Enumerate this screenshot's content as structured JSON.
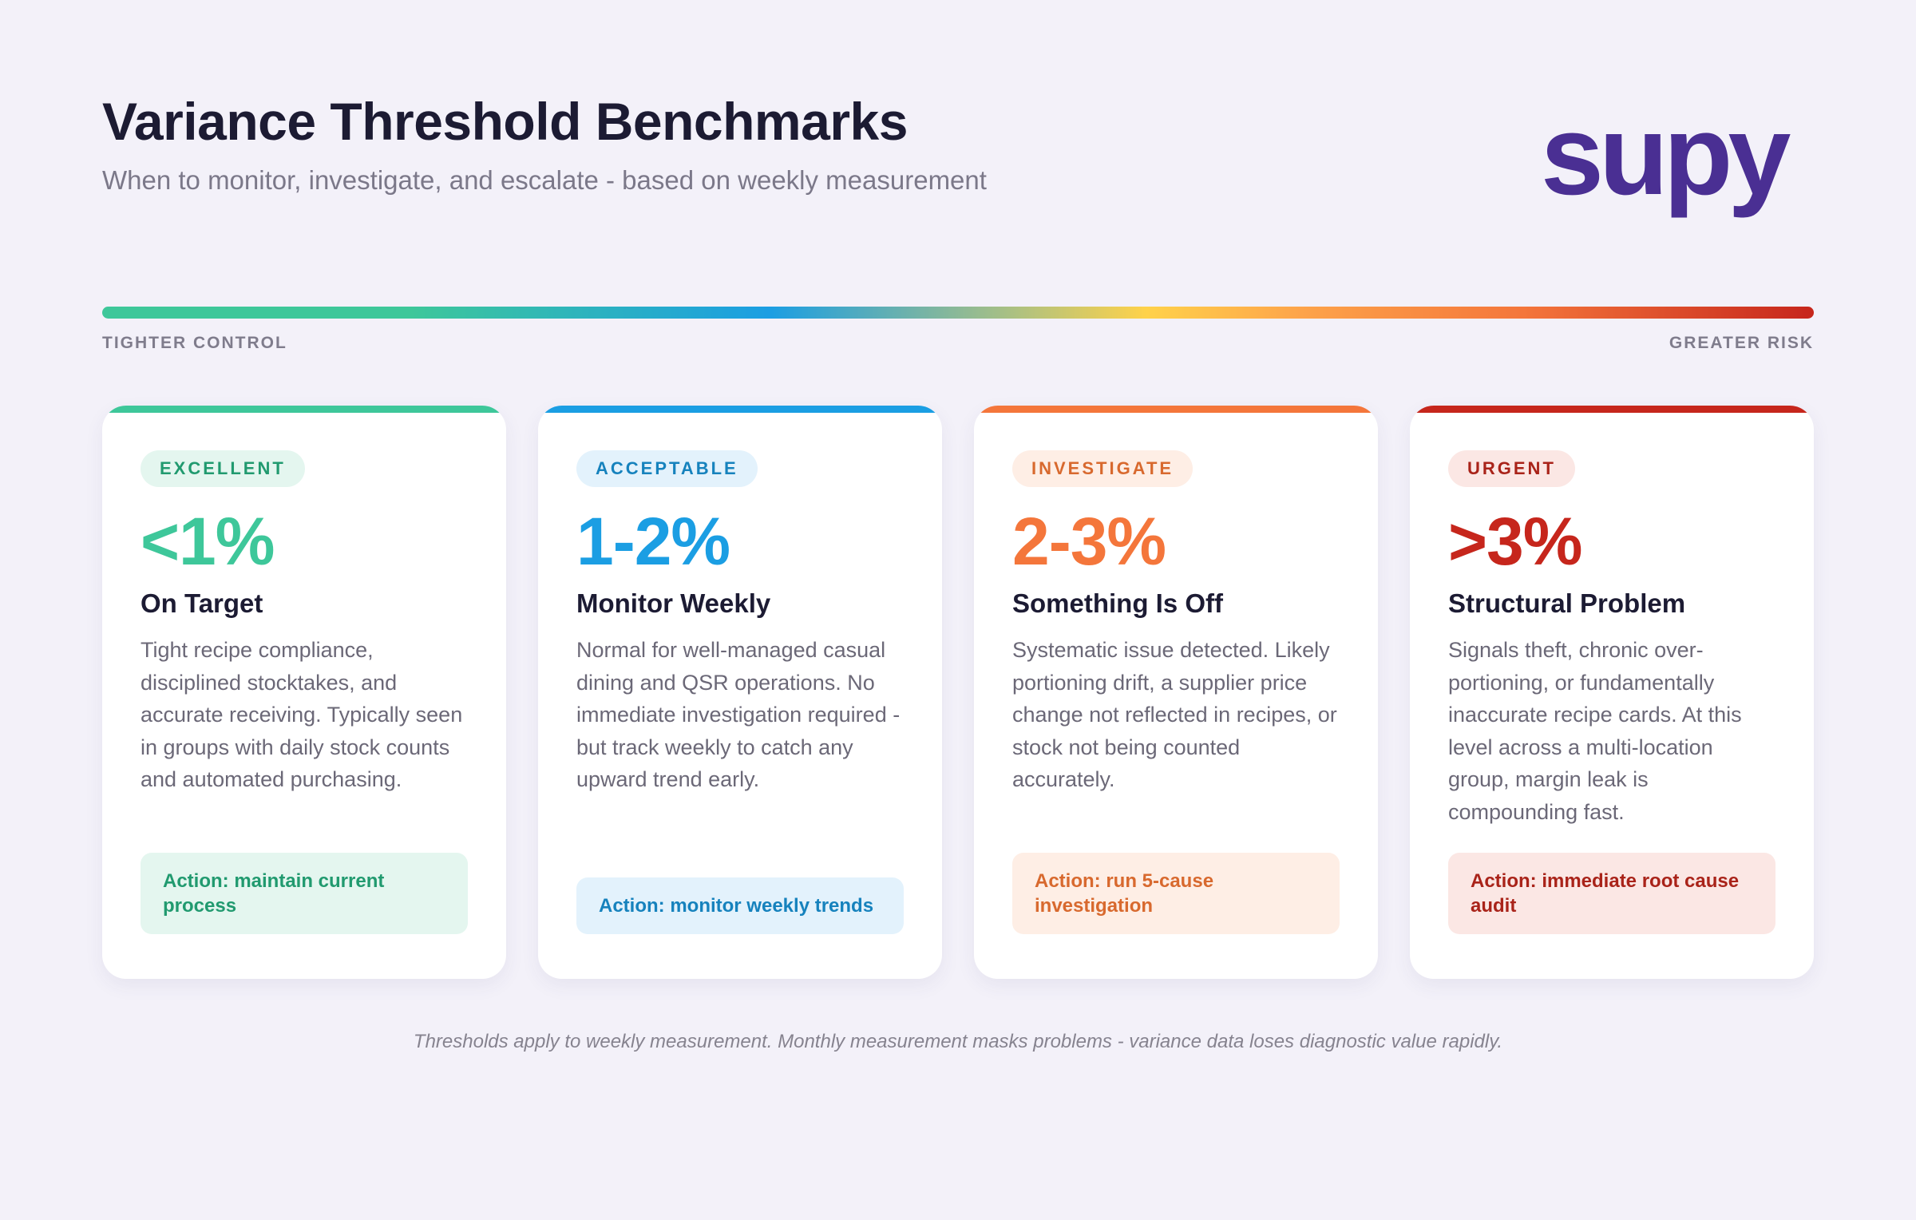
{
  "header": {
    "title": "Variance Threshold Benchmarks",
    "subtitle": "When to monitor, investigate, and escalate - based on weekly measurement"
  },
  "brand": {
    "logo_text": "supy",
    "color": "#4a2f93"
  },
  "scale": {
    "left_label": "TIGHTER CONTROL",
    "right_label": "GREATER RISK",
    "gradient_colors": [
      "#3ec79a",
      "#1b9ee3",
      "#ffd24a",
      "#f4763b",
      "#c6261c"
    ]
  },
  "cards": [
    {
      "badge": "EXCELLENT",
      "range": "<1%",
      "heading": "On Target",
      "description": "Tight recipe compliance, disciplined stocktakes, and accurate receiving. Typically seen in groups with daily stock counts and automated purchasing.",
      "action": "Action: maintain current process",
      "colors": {
        "accent": "#3ec79a",
        "badge_bg": "#e4f6ef",
        "badge_text": "#219a6f",
        "action_bg": "#e4f6ef",
        "action_text": "#219a6f"
      }
    },
    {
      "badge": "ACCEPTABLE",
      "range": "1-2%",
      "heading": "Monitor Weekly",
      "description": "Normal for well-managed casual dining and QSR operations. No immediate investigation required - but track weekly to catch any upward trend early.",
      "action": "Action: monitor weekly trends",
      "colors": {
        "accent": "#1b9ee3",
        "badge_bg": "#e3f2fc",
        "badge_text": "#1682bd",
        "action_bg": "#e3f2fc",
        "action_text": "#1682bd"
      }
    },
    {
      "badge": "INVESTIGATE",
      "range": "2-3%",
      "heading": "Something Is Off",
      "description": "Systematic issue detected. Likely portioning drift, a supplier price change not reflected in recipes, or stock not being counted accurately.",
      "action": "Action: run 5-cause investigation",
      "colors": {
        "accent": "#f4763b",
        "badge_bg": "#feeee5",
        "badge_text": "#d8692e",
        "action_bg": "#feeee5",
        "action_text": "#d8692e"
      }
    },
    {
      "badge": "URGENT",
      "range": ">3%",
      "heading": "Structural Problem",
      "description": "Signals theft, chronic over-portioning, or fundamentally inaccurate recipe cards. At this level across a multi-location group, margin leak is compounding fast.",
      "action": "Action: immediate root cause audit",
      "colors": {
        "accent": "#c6261c",
        "badge_bg": "#fbe7e4",
        "badge_text": "#a92319",
        "action_bg": "#fbe7e4",
        "action_text": "#a92319"
      }
    }
  ],
  "footnote": "Thresholds apply to weekly measurement. Monthly measurement masks problems - variance data loses diagnostic value rapidly."
}
